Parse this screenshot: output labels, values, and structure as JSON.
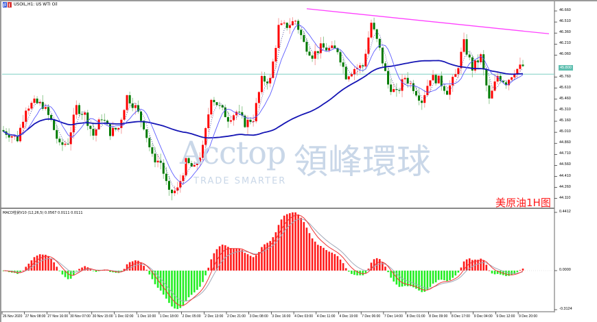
{
  "window": {
    "title": "USOIL,H1:  US WTI Oil"
  },
  "annotation_text": "美原油1H图",
  "watermark": {
    "brand": "Acctop",
    "brand_cn": "領峰環球",
    "slogan": "TRADE SMARTER"
  },
  "colors": {
    "up": "#ff0000",
    "down": "#007a00",
    "macd_pos": "#ff1a1a",
    "macd_neg": "#22ee22",
    "fast_ma": "#5a5aff",
    "slow_ma": "#1414b4",
    "trendline": "#ff40ff",
    "hline": "#7fcfc4",
    "signal_red": "#ee3333",
    "signal_grey": "#a0a8b8"
  },
  "chart_data": {
    "type": "candlestick",
    "symbol": "USOIL",
    "timeframe": "H1",
    "closes": [
      45.04,
      44.99,
      44.92,
      45.35,
      45.41,
      45.38,
      45.16,
      44.82,
      44.88,
      45.35,
      45.25,
      44.97,
      45.22,
      45.01,
      45.07,
      45.5,
      45.35,
      45.1,
      44.67,
      44.6,
      44.17,
      44.23,
      44.6,
      44.51,
      44.79,
      45.5,
      45.35,
      45.2,
      45.29,
      45.13,
      45.2,
      45.72,
      45.72,
      46.44,
      46.46,
      46.53,
      46.22,
      46.06,
      46.16,
      46.14,
      46.13,
      45.78,
      45.88,
      45.91,
      46.5,
      46.13,
      45.66,
      45.53,
      45.76,
      45.62,
      45.44,
      45.76,
      45.72,
      45.57,
      45.78,
      46.22,
      45.88,
      46.04,
      45.44,
      45.78,
      45.69,
      45.85,
      45.91
    ],
    "price_axis": [
      46.66,
      46.51,
      46.36,
      46.21,
      46.06,
      45.76,
      45.61,
      45.46,
      45.31,
      45.16,
      45.01,
      44.86,
      44.71,
      44.56,
      44.41,
      44.26,
      44.11
    ],
    "current_price": "45.800",
    "horizontal_line": 45.8,
    "trendline": {
      "from": {
        "time": "4 Dec 03:00",
        "price": 46.69
      },
      "to": {
        "price": 46.35
      }
    },
    "time_axis": [
      "26 Nov 2020",
      "27 Nov 08:00",
      "27 Nov 16:00",
      "30 Nov 07:00",
      "30 Nov 15:00",
      "1 Dec 02:00",
      "1 Dec 10:00",
      "1 Dec 18:00",
      "2 Dec 05:00",
      "2 Dec 13:00",
      "2 Dec 21:00",
      "3 Dec 08:00",
      "3 Dec 16:00",
      "4 Dec 03:00",
      "4 Dec 11:00",
      "4 Dec 19:00",
      "7 Dec 06:00",
      "7 Dec 14:00",
      "8 Dec 01:00",
      "8 Dec 09:00",
      "8 Dec 17:00",
      "9 Dec 04:00",
      "9 Dec 12:00",
      "9 Dec 20:00"
    ],
    "indicator": {
      "label": "MACD柱状V10 (12,26,5) 0.0567 0.0111 0.0111",
      "axis": [
        "0.4412",
        "0.0000",
        "-0.3124"
      ],
      "range": [
        -0.3124,
        0.4412
      ]
    }
  }
}
